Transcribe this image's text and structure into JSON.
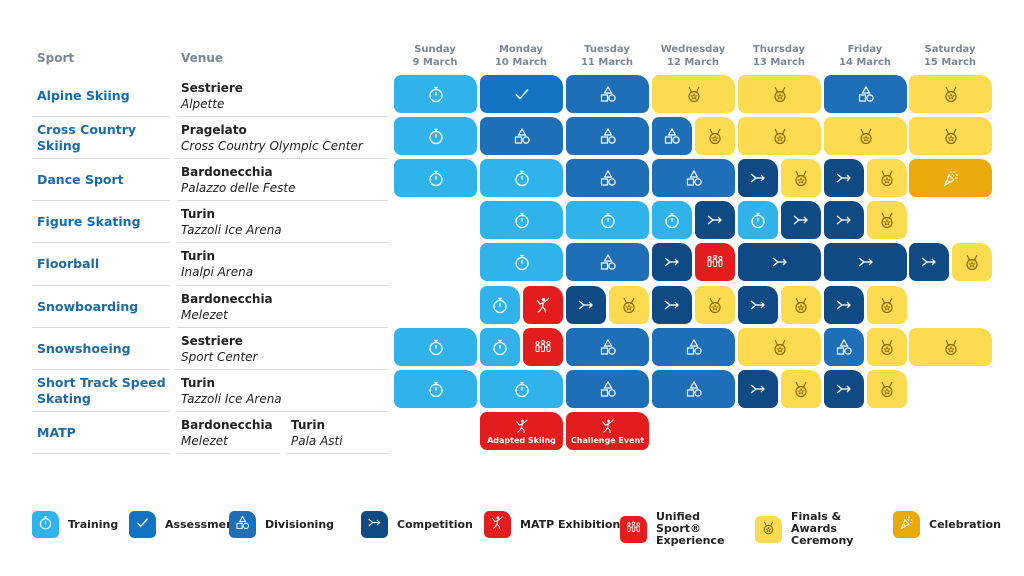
{
  "headers": {
    "sport": "Sport",
    "venue": "Venue"
  },
  "days": [
    {
      "name": "Sunday",
      "date": "9 March"
    },
    {
      "name": "Monday",
      "date": "10 March"
    },
    {
      "name": "Tuesday",
      "date": "11 March"
    },
    {
      "name": "Wednesday",
      "date": "12 March"
    },
    {
      "name": "Thursday",
      "date": "13 March"
    },
    {
      "name": "Friday",
      "date": "14 March"
    },
    {
      "name": "Saturday",
      "date": "15 March"
    }
  ],
  "colors": {
    "training": "#2fb3ea",
    "assessment": "#1474c4",
    "divisioning": "#1f6fb8",
    "competition": "#0f4a84",
    "exhibition": "#e31d1d",
    "unified": "#e31d1d",
    "finals": "#fbdc50",
    "celebration": "#eaaa0b"
  },
  "rows": [
    {
      "sport": "Alpine Skiing",
      "venue": "Sestriere",
      "venue_sub": "Alpette"
    },
    {
      "sport": "Cross Country Skiing",
      "venue": "Pragelato",
      "venue_sub": "Cross Country Olympic Center"
    },
    {
      "sport": "Dance Sport",
      "venue": "Bardonecchia",
      "venue_sub": "Palazzo delle Feste"
    },
    {
      "sport": "Figure Skating",
      "venue": "Turin",
      "venue_sub": "Tazzoli Ice Arena"
    },
    {
      "sport": "Floorball",
      "venue": "Turin",
      "venue_sub": "Inalpi Arena"
    },
    {
      "sport": "Snowboarding",
      "venue": "Bardonecchia",
      "venue_sub": "Melezet"
    },
    {
      "sport": "Snowshoeing",
      "venue": "Sestriere",
      "venue_sub": "Sport Center"
    },
    {
      "sport": "Short Track Speed Skating",
      "venue": "Turin",
      "venue_sub": "Tazzoli Ice Arena"
    },
    {
      "sport": "MATP",
      "venue": "Bardonecchia",
      "venue_sub": "Melezet",
      "venue2": "Turin",
      "venue2_sub": "Pala Asti"
    }
  ],
  "schedule": [
    [
      [
        "training"
      ],
      [
        "assessment"
      ],
      [
        "divisioning"
      ],
      [
        "finals"
      ],
      [
        "finals"
      ],
      [
        "divisioning"
      ],
      [
        "finals"
      ]
    ],
    [
      [
        "training"
      ],
      [
        "divisioning"
      ],
      [
        "divisioning"
      ],
      [
        "divisioning",
        "finals"
      ],
      [
        "finals"
      ],
      [
        "finals"
      ],
      [
        "finals"
      ]
    ],
    [
      [
        "training"
      ],
      [
        "training"
      ],
      [
        "divisioning"
      ],
      [
        "divisioning"
      ],
      [
        "competition",
        "finals"
      ],
      [
        "competition",
        "finals"
      ],
      [
        "celebration"
      ]
    ],
    [
      [],
      [
        "training"
      ],
      [
        "training"
      ],
      [
        "training",
        "competition"
      ],
      [
        "training",
        "competition"
      ],
      [
        "competition",
        "finals"
      ],
      []
    ],
    [
      [],
      [
        "training"
      ],
      [
        "divisioning"
      ],
      [
        "competition",
        "unified"
      ],
      [
        "competition"
      ],
      [
        "competition"
      ],
      [
        "competition",
        "finals"
      ]
    ],
    [
      [],
      [
        "training",
        "exhibition"
      ],
      [
        "competition",
        "finals"
      ],
      [
        "competition",
        "finals"
      ],
      [
        "competition",
        "finals"
      ],
      [
        "competition",
        "finals"
      ],
      []
    ],
    [
      [
        "training"
      ],
      [
        "training",
        "unified"
      ],
      [
        "divisioning"
      ],
      [
        "divisioning"
      ],
      [
        "finals"
      ],
      [
        "divisioning",
        "finals"
      ],
      [
        "finals"
      ]
    ],
    [
      [
        "training"
      ],
      [
        "training"
      ],
      [
        "divisioning"
      ],
      [
        "divisioning"
      ],
      [
        "competition",
        "finals"
      ],
      [
        "competition",
        "finals"
      ],
      []
    ],
    [
      [],
      [
        "exhibition"
      ],
      [
        "exhibition"
      ],
      [],
      [],
      [],
      []
    ]
  ],
  "cell_labels": {
    "8-1": "Adapted Skiing",
    "8-2": "Challenge Event"
  },
  "legend": [
    {
      "type": "training",
      "label": "Training",
      "icon": "stopwatch-icon"
    },
    {
      "type": "assessment",
      "label": "Assessment",
      "icon": "checkmark-icon"
    },
    {
      "type": "divisioning",
      "label": "Divisioning",
      "icon": "shapes-icon"
    },
    {
      "type": "competition",
      "label": "Competition",
      "icon": "arrow-merge-icon"
    },
    {
      "type": "exhibition",
      "label": "MATP Exhibition",
      "icon": "adaptive-athlete-icon"
    },
    {
      "type": "unified",
      "label": "Unified Sport® Experience",
      "icon": "group-people-icon"
    },
    {
      "type": "finals",
      "label": "Finals & Awards Ceremony",
      "icon": "medal-icon"
    },
    {
      "type": "celebration",
      "label": "Celebration",
      "icon": "party-popper-icon"
    }
  ]
}
